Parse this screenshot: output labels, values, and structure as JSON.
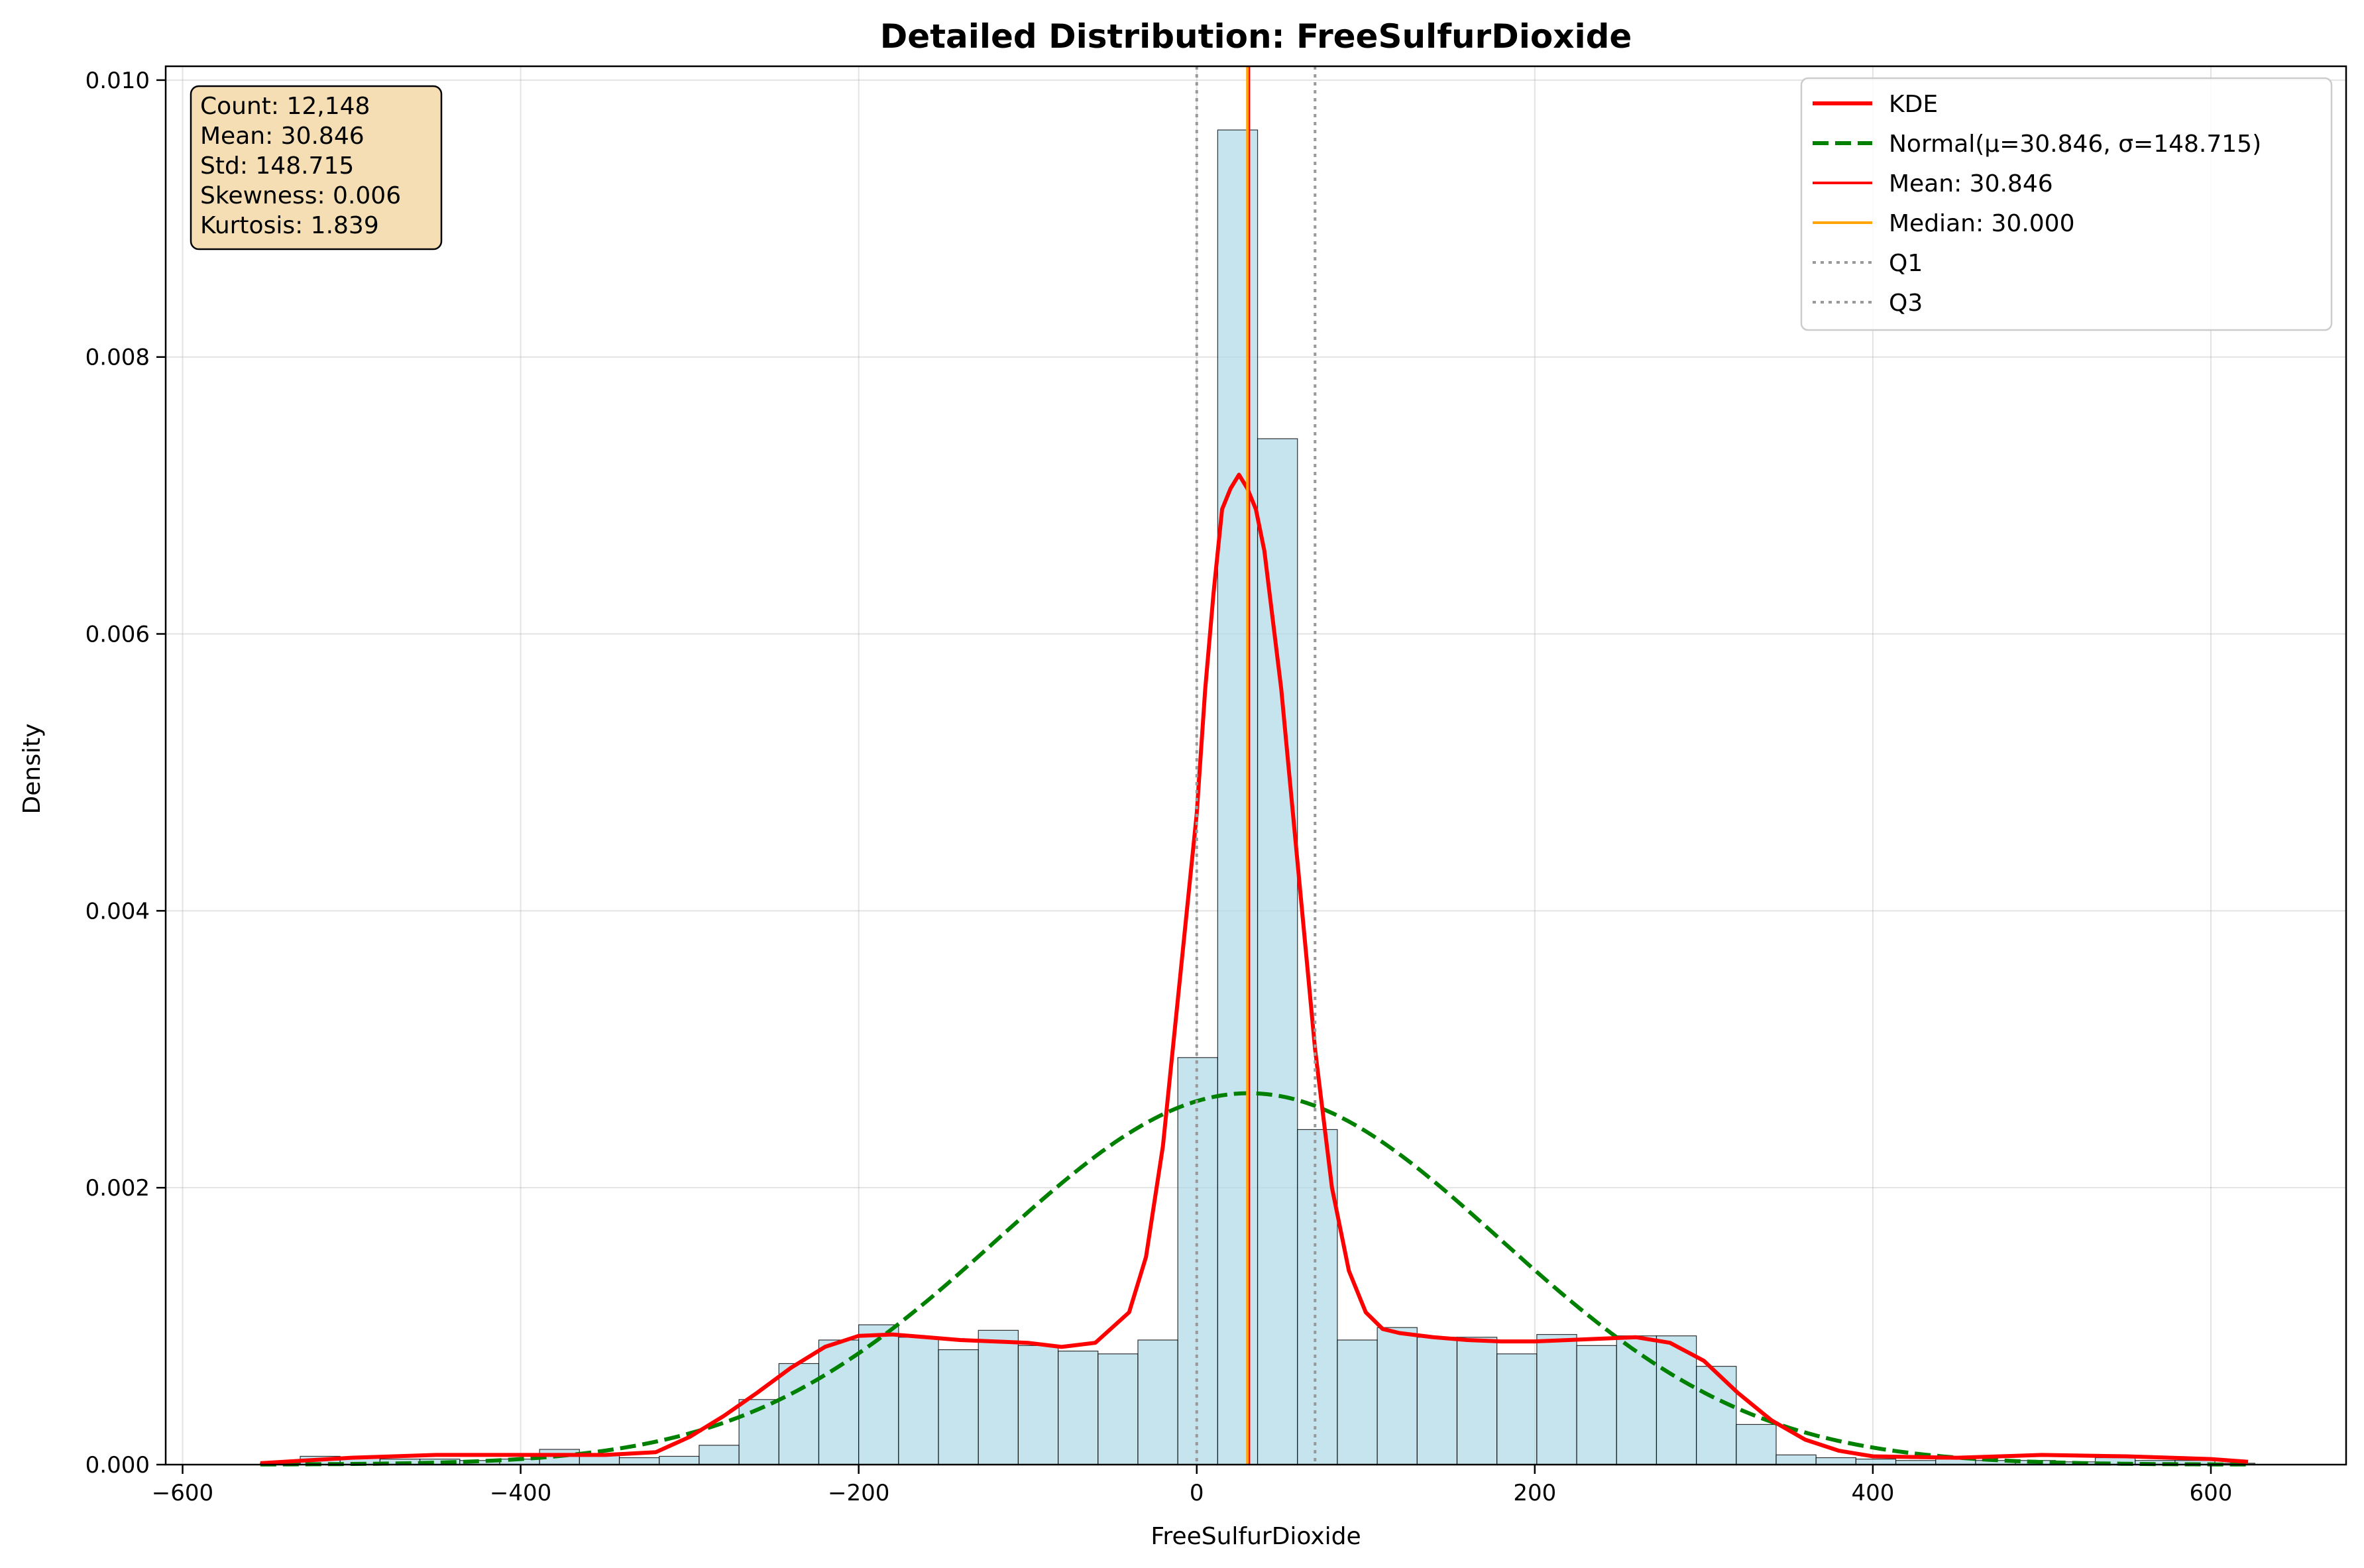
{
  "chart_data": {
    "type": "bar",
    "title": "Detailed Distribution: FreeSulfurDioxide",
    "xlabel": "FreeSulfurDioxide",
    "ylabel": "Density",
    "xlim": [
      -610,
      680
    ],
    "ylim": [
      0,
      0.0101
    ],
    "x_ticks": [
      -600,
      -400,
      -200,
      0,
      200,
      400,
      600
    ],
    "x_tick_labels": [
      "−600",
      "−400",
      "−200",
      "0",
      "200",
      "400",
      "600"
    ],
    "y_ticks": [
      0,
      0.002,
      0.004,
      0.006,
      0.008,
      0.01
    ],
    "y_tick_labels": [
      "0.000",
      "0.002",
      "0.004",
      "0.006",
      "0.008",
      "0.010"
    ],
    "grid": true,
    "histogram": {
      "bin_width": 23.6,
      "bin_start": -554,
      "values": [
        1e-05,
        6e-05,
        5e-05,
        4e-05,
        4e-05,
        3e-05,
        4e-05,
        0.00011,
        7e-05,
        5e-05,
        6e-05,
        0.00014,
        0.00047,
        0.00073,
        0.0009,
        0.00101,
        0.00092,
        0.00083,
        0.00097,
        0.00086,
        0.00082,
        0.0008,
        0.0009,
        0.00294,
        0.00964,
        0.00741,
        0.00242,
        0.0009,
        0.00099,
        0.00092,
        0.00092,
        0.0008,
        0.00094,
        0.00086,
        0.00093,
        0.00093,
        0.00071,
        0.00029,
        7e-05,
        5e-05,
        4e-05,
        3e-05,
        4e-05,
        3e-05,
        3e-05,
        2e-05,
        5e-05,
        3e-05,
        3e-05,
        1e-05
      ]
    },
    "kde": {
      "x": [
        -554,
        -500,
        -450,
        -400,
        -350,
        -320,
        -300,
        -280,
        -260,
        -240,
        -220,
        -200,
        -180,
        -160,
        -140,
        -120,
        -100,
        -80,
        -60,
        -40,
        -30,
        -20,
        -10,
        0,
        5,
        10,
        15,
        20,
        25,
        30,
        35,
        40,
        50,
        60,
        70,
        80,
        90,
        100,
        110,
        120,
        140,
        160,
        180,
        200,
        220,
        240,
        260,
        280,
        300,
        320,
        340,
        360,
        380,
        400,
        450,
        500,
        550,
        600,
        622
      ],
      "y": [
        1e-05,
        5e-05,
        7e-05,
        7e-05,
        7e-05,
        9e-05,
        0.0002,
        0.00035,
        0.00052,
        0.0007,
        0.00085,
        0.00093,
        0.00094,
        0.00092,
        0.0009,
        0.00089,
        0.00088,
        0.00085,
        0.00088,
        0.0011,
        0.0015,
        0.0023,
        0.0035,
        0.0047,
        0.0056,
        0.0063,
        0.0069,
        0.00705,
        0.00715,
        0.00705,
        0.0069,
        0.0066,
        0.0056,
        0.0043,
        0.003,
        0.002,
        0.0014,
        0.0011,
        0.00098,
        0.00095,
        0.00092,
        0.0009,
        0.00089,
        0.00089,
        0.0009,
        0.00091,
        0.00092,
        0.00088,
        0.00075,
        0.00052,
        0.00032,
        0.00018,
        0.0001,
        6e-05,
        5e-05,
        7e-05,
        6e-05,
        4e-05,
        2e-05
      ]
    },
    "normal": {
      "mu": 30.846,
      "sigma": 148.715,
      "x_range": [
        -554,
        622
      ]
    },
    "vlines": {
      "mean": 30.846,
      "median": 30.0,
      "q1": 0,
      "q3": 70
    },
    "stats_box": {
      "count": "Count: 12,148",
      "mean": "Mean: 30.846",
      "std": "Std: 148.715",
      "skewness": "Skewness: 0.006",
      "kurtosis": "Kurtosis: 1.839"
    },
    "legend_position": "top-right",
    "legend": [
      {
        "label": "KDE",
        "color": "#ff0000",
        "style": "solid",
        "width": 6
      },
      {
        "label": "Normal(μ=30.846, σ=148.715)",
        "color": "#008000",
        "style": "dashed",
        "width": 6
      },
      {
        "label": "Mean: 30.846",
        "color": "#ff0000",
        "style": "solid",
        "width": 4
      },
      {
        "label": "Median: 30.000",
        "color": "#ffa500",
        "style": "solid",
        "width": 4
      },
      {
        "label": "Q1",
        "color": "#999999",
        "style": "dotted",
        "width": 4
      },
      {
        "label": "Q3",
        "color": "#999999",
        "style": "dotted",
        "width": 4
      }
    ],
    "colors": {
      "bar_fill": "#add8e6",
      "bar_edge": "#000000",
      "kde": "#ff0000",
      "normal": "#008000",
      "mean": "#ff0000",
      "median": "#ffa500",
      "quartile": "#999999",
      "stats_bg": "#f5deb3"
    }
  }
}
